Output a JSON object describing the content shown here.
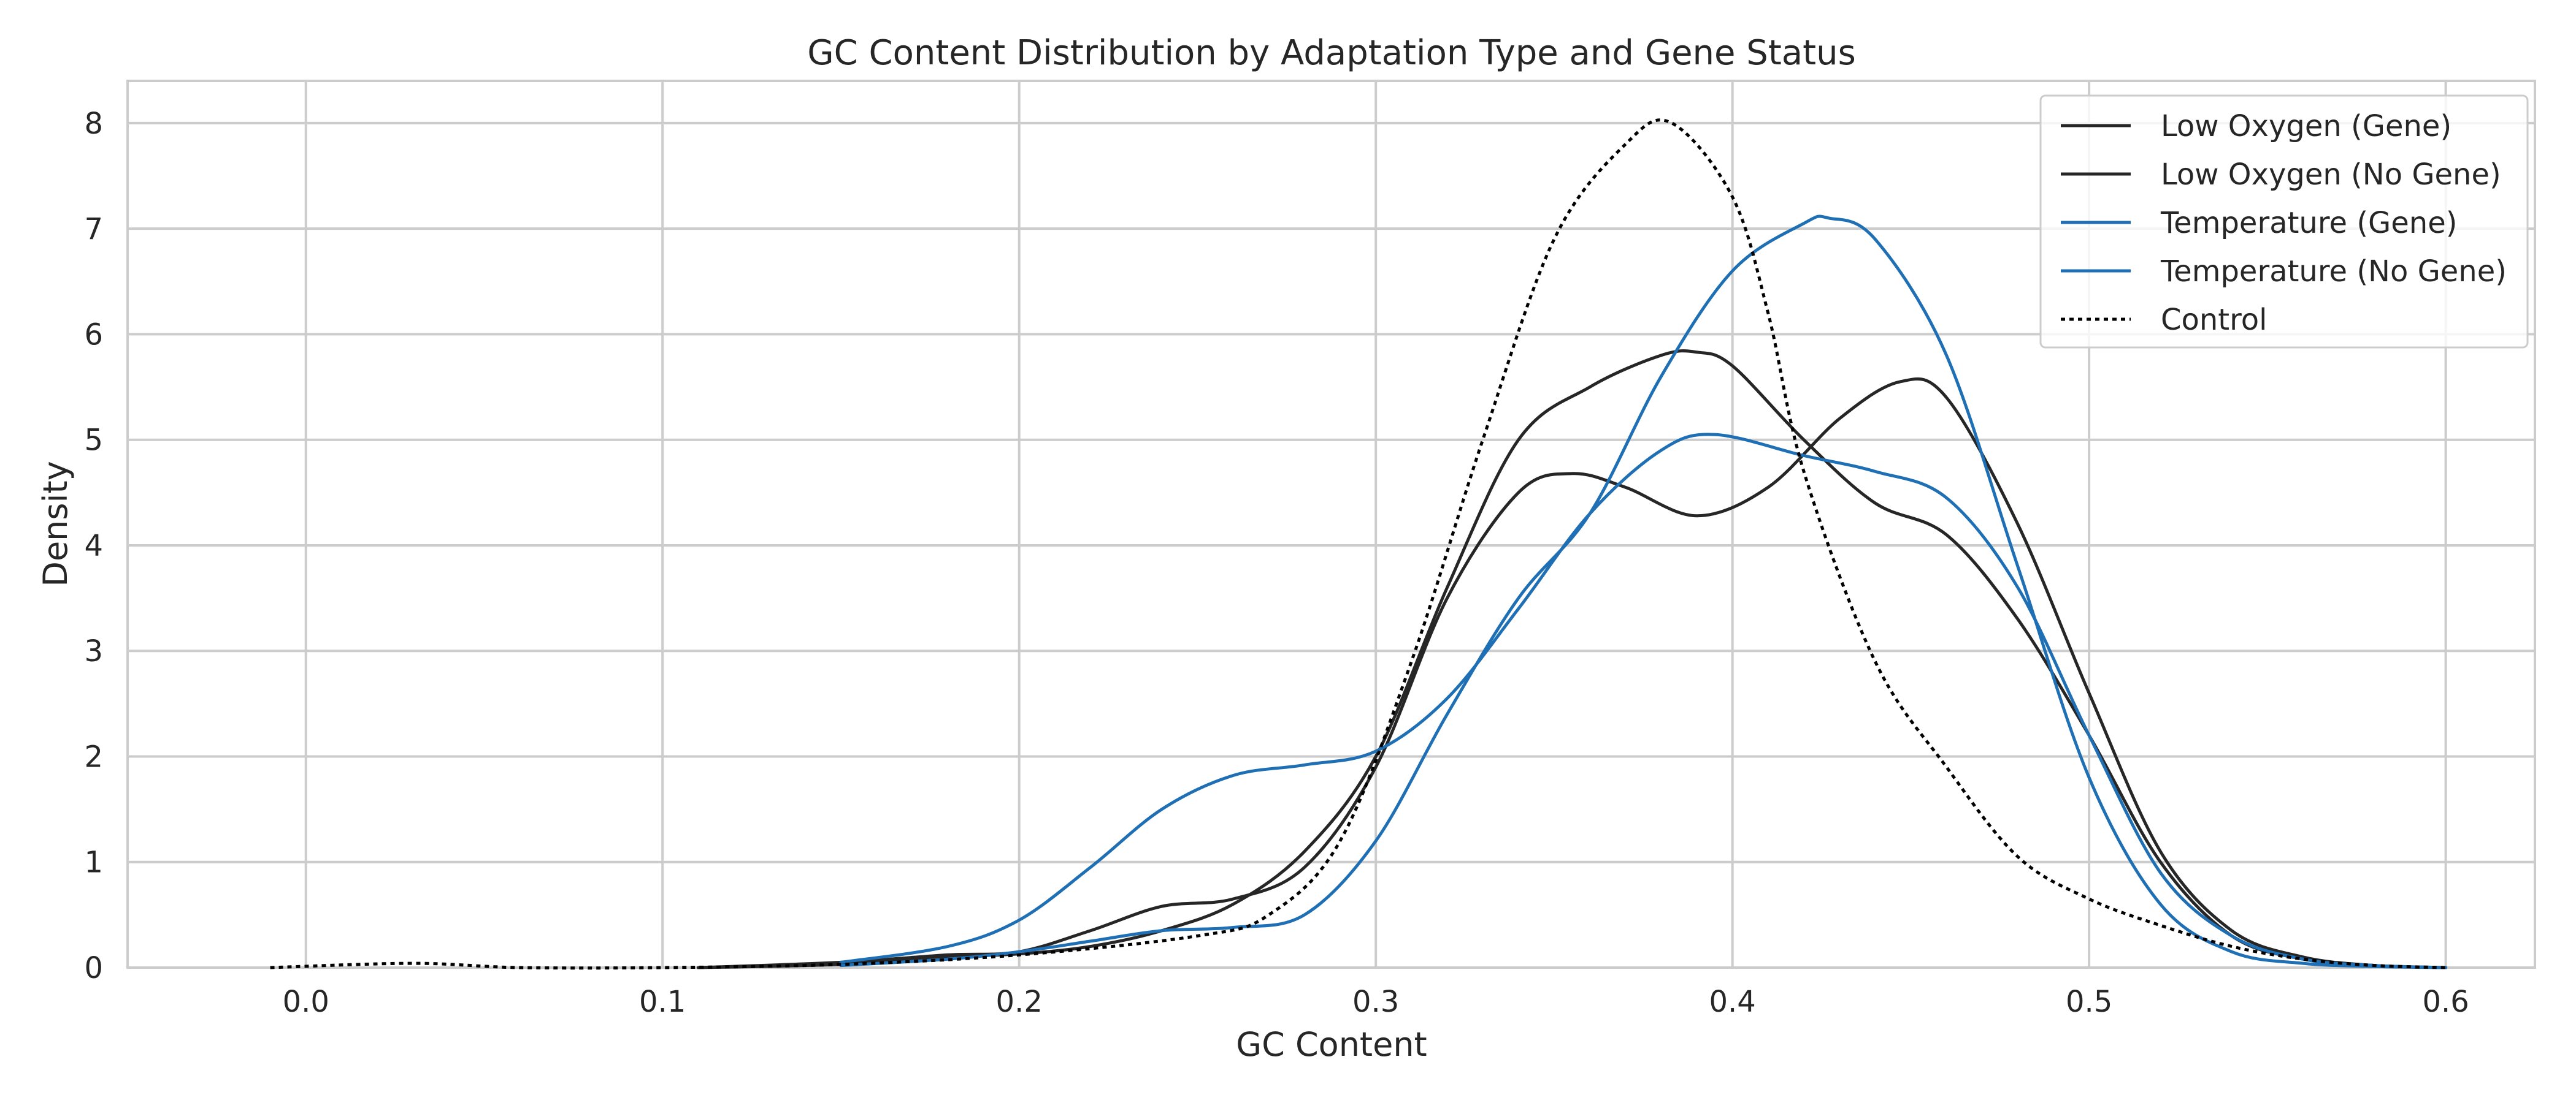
{
  "chart_data": {
    "type": "line",
    "title": "GC Content Distribution by Adaptation Type and Gene Status",
    "xlabel": "GC Content",
    "ylabel": "Density",
    "xlim": [
      -0.05,
      0.625
    ],
    "ylim": [
      0,
      8.4
    ],
    "xticks": [
      0.0,
      0.1,
      0.2,
      0.3,
      0.4,
      0.5,
      0.6
    ],
    "xtick_labels": [
      "0.0",
      "0.1",
      "0.2",
      "0.3",
      "0.4",
      "0.5",
      "0.6"
    ],
    "yticks": [
      0,
      1,
      2,
      3,
      4,
      5,
      6,
      7,
      8
    ],
    "ytick_labels": [
      "0",
      "1",
      "2",
      "3",
      "4",
      "5",
      "6",
      "7",
      "8"
    ],
    "grid": true,
    "legend_position": "top-right",
    "series": [
      {
        "name": "Low Oxygen (Gene)",
        "color": "#262626",
        "style": "solid",
        "x": [
          0.11,
          0.15,
          0.18,
          0.2,
          0.22,
          0.24,
          0.26,
          0.28,
          0.3,
          0.32,
          0.34,
          0.355,
          0.37,
          0.39,
          0.41,
          0.43,
          0.447,
          0.46,
          0.48,
          0.5,
          0.52,
          0.54,
          0.56,
          0.58,
          0.6
        ],
        "y": [
          0.0,
          0.05,
          0.12,
          0.15,
          0.35,
          0.58,
          0.65,
          0.95,
          1.9,
          3.5,
          4.5,
          4.68,
          4.55,
          4.28,
          4.55,
          5.2,
          5.55,
          5.4,
          4.2,
          2.6,
          1.1,
          0.35,
          0.1,
          0.02,
          0.0
        ]
      },
      {
        "name": "Low Oxygen (No Gene)",
        "color": "#262626",
        "style": "solid",
        "x": [
          0.11,
          0.15,
          0.18,
          0.2,
          0.22,
          0.24,
          0.26,
          0.28,
          0.3,
          0.32,
          0.34,
          0.36,
          0.38,
          0.39,
          0.4,
          0.42,
          0.44,
          0.46,
          0.48,
          0.5,
          0.52,
          0.54,
          0.56,
          0.58,
          0.6
        ],
        "y": [
          0.0,
          0.03,
          0.1,
          0.13,
          0.2,
          0.35,
          0.6,
          1.1,
          2.0,
          3.6,
          5.0,
          5.5,
          5.8,
          5.83,
          5.7,
          5.0,
          4.4,
          4.1,
          3.3,
          2.2,
          1.0,
          0.3,
          0.08,
          0.02,
          0.0
        ]
      },
      {
        "name": "Temperature (Gene)",
        "color": "#1f6fb4",
        "style": "solid",
        "x": [
          0.15,
          0.18,
          0.2,
          0.22,
          0.24,
          0.26,
          0.28,
          0.3,
          0.32,
          0.34,
          0.36,
          0.38,
          0.4,
          0.42,
          0.427,
          0.44,
          0.46,
          0.48,
          0.5,
          0.52,
          0.54,
          0.56,
          0.58,
          0.6
        ],
        "y": [
          0.02,
          0.08,
          0.15,
          0.25,
          0.35,
          0.38,
          0.5,
          1.2,
          2.4,
          3.5,
          4.3,
          5.6,
          6.6,
          7.05,
          7.1,
          6.9,
          5.8,
          3.8,
          1.8,
          0.6,
          0.15,
          0.04,
          0.01,
          0.0
        ]
      },
      {
        "name": "Temperature (No Gene)",
        "color": "#1f6fb4",
        "style": "solid",
        "x": [
          0.15,
          0.18,
          0.2,
          0.22,
          0.24,
          0.26,
          0.28,
          0.3,
          0.32,
          0.34,
          0.36,
          0.38,
          0.395,
          0.42,
          0.44,
          0.46,
          0.48,
          0.5,
          0.52,
          0.54,
          0.56,
          0.58,
          0.6
        ],
        "y": [
          0.05,
          0.2,
          0.45,
          0.95,
          1.5,
          1.82,
          1.92,
          2.05,
          2.55,
          3.4,
          4.3,
          4.9,
          5.05,
          4.85,
          4.7,
          4.45,
          3.6,
          2.2,
          0.9,
          0.3,
          0.08,
          0.02,
          0.0
        ]
      },
      {
        "name": "Control",
        "color": "#000000",
        "style": "dotted",
        "x": [
          -0.01,
          0.03,
          0.06,
          0.1,
          0.15,
          0.2,
          0.25,
          0.27,
          0.29,
          0.31,
          0.33,
          0.35,
          0.37,
          0.383,
          0.4,
          0.41,
          0.42,
          0.44,
          0.46,
          0.48,
          0.5,
          0.52,
          0.54,
          0.56,
          0.58,
          0.6
        ],
        "y": [
          0.0,
          0.04,
          0.0,
          0.0,
          0.03,
          0.12,
          0.3,
          0.5,
          1.2,
          2.9,
          5.0,
          6.9,
          7.8,
          8.0,
          7.3,
          6.2,
          4.7,
          2.9,
          1.9,
          1.05,
          0.65,
          0.4,
          0.2,
          0.08,
          0.02,
          0.0
        ]
      }
    ]
  }
}
